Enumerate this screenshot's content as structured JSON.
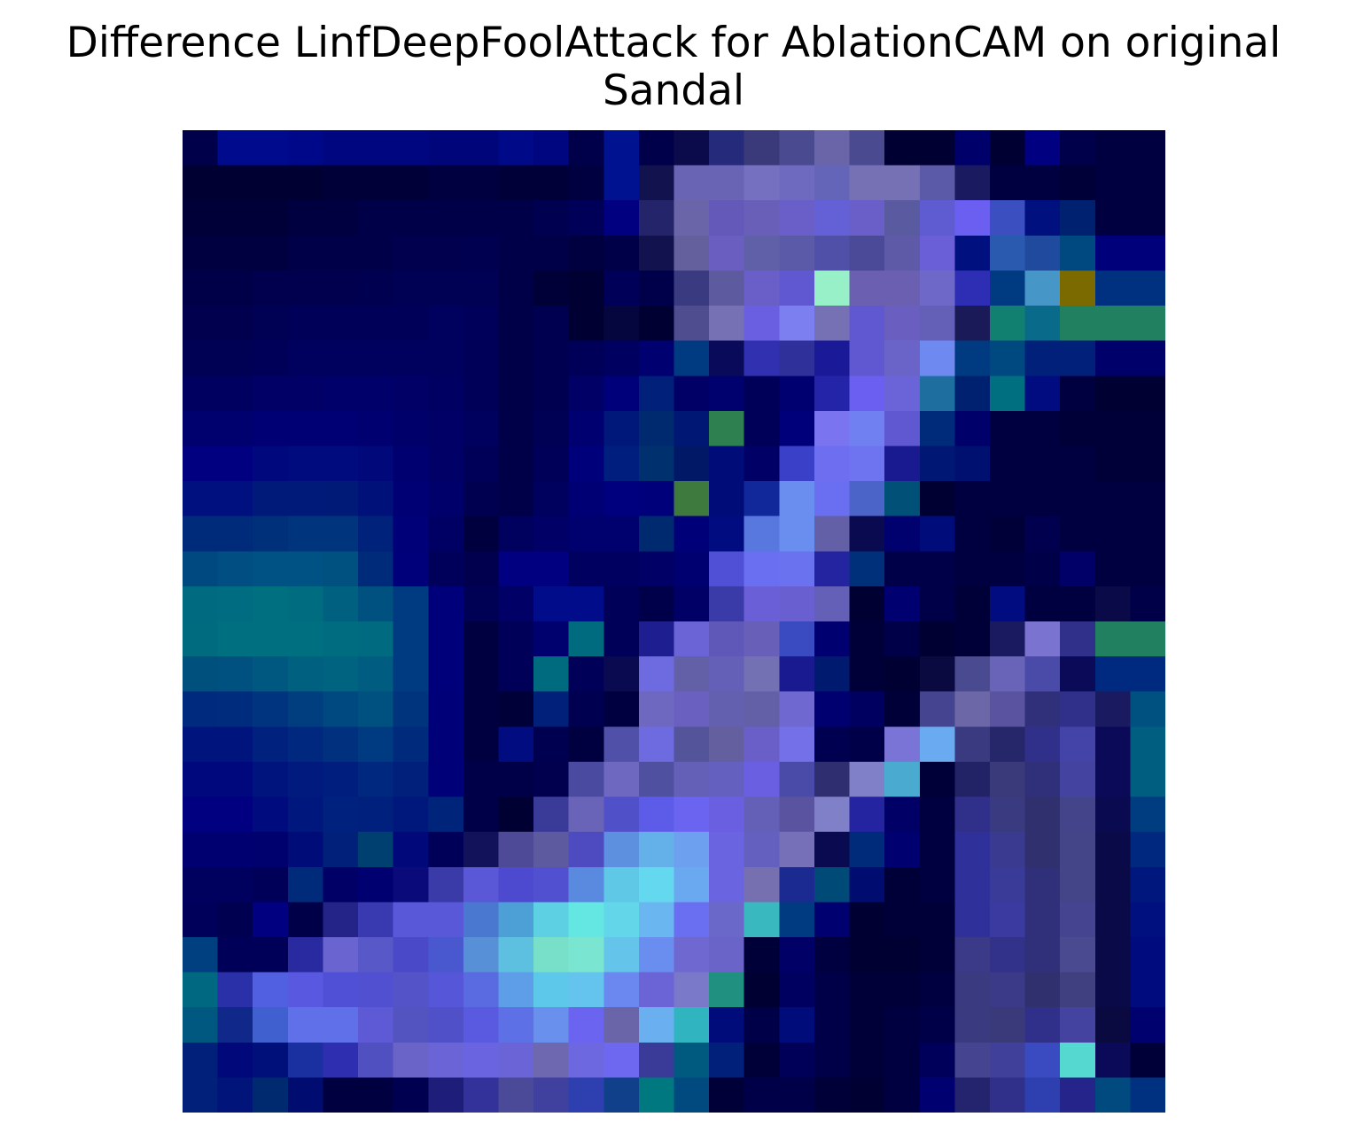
{
  "title": "Difference LinfDeepFoolAttack for AblationCAM on original\nSandal",
  "image": {
    "kind": "pixelated-heatmap-overlay",
    "grid_rows": 28,
    "grid_cols": 28,
    "palette": [
      "#000033",
      "#00006b",
      "#0a1a8a",
      "#1f3a9e",
      "#3b4fc0",
      "#6a5fd6",
      "#7b7ff0",
      "#6fb6ee",
      "#5fe0e6",
      "#89f2c7",
      "#2e8a7a",
      "#3f7f3f",
      "#7a6a00"
    ]
  }
}
